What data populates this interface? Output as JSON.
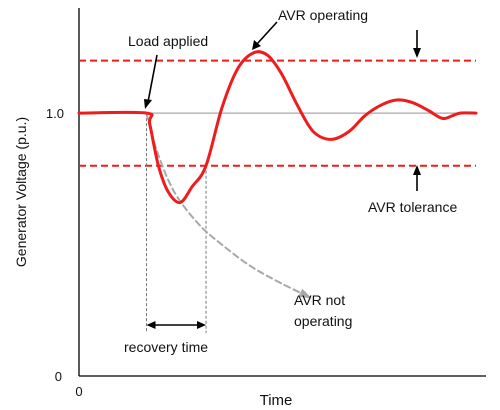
{
  "chart_data": {
    "type": "line",
    "xlabel": "Time",
    "ylabel": "Generator Voltage (p.u.)",
    "x_tick_labels": [
      {
        "x": 0,
        "label": "0"
      }
    ],
    "y_tick_labels": [
      {
        "y": 0,
        "label": "0"
      },
      {
        "y": 1.0,
        "label": "1.0"
      }
    ],
    "xlim": [
      0,
      10
    ],
    "ylim": [
      0,
      1.4
    ],
    "grid": false,
    "nominal_voltage": 1.0,
    "tolerance_band": {
      "upper": 1.2,
      "lower": 0.8
    },
    "series": [
      {
        "key": "avr_operating",
        "color": "#ee1c1c",
        "style": "solid",
        "points": [
          [
            0,
            1.0
          ],
          [
            1.7,
            1.0
          ],
          [
            1.78,
            0.96
          ],
          [
            2.0,
            0.8
          ],
          [
            2.25,
            0.7
          ],
          [
            2.55,
            0.66
          ],
          [
            2.85,
            0.72
          ],
          [
            3.2,
            0.8
          ],
          [
            3.6,
            1.02
          ],
          [
            4.0,
            1.17
          ],
          [
            4.4,
            1.23
          ],
          [
            4.75,
            1.22
          ],
          [
            5.1,
            1.15
          ],
          [
            5.5,
            1.03
          ],
          [
            5.9,
            0.93
          ],
          [
            6.35,
            0.9
          ],
          [
            6.8,
            0.93
          ],
          [
            7.2,
            0.99
          ],
          [
            7.6,
            1.03
          ],
          [
            8.0,
            1.05
          ],
          [
            8.4,
            1.04
          ],
          [
            8.8,
            1.01
          ],
          [
            9.15,
            0.98
          ],
          [
            9.4,
            0.99
          ],
          [
            9.6,
            1.0
          ],
          [
            10.0,
            1.0
          ]
        ]
      },
      {
        "key": "avr_not_operating",
        "color": "#a8a8a8",
        "style": "dashed",
        "points": [
          [
            1.7,
            1.0
          ],
          [
            1.78,
            0.95
          ],
          [
            2.0,
            0.84
          ],
          [
            2.4,
            0.7
          ],
          [
            3.0,
            0.58
          ],
          [
            3.6,
            0.5
          ],
          [
            4.3,
            0.42
          ],
          [
            5.0,
            0.36
          ],
          [
            5.8,
            0.3
          ]
        ]
      }
    ],
    "annotations": [
      {
        "text": "Load applied"
      },
      {
        "text": "AVR operating"
      },
      {
        "text": "AVR tolerance"
      },
      {
        "lines": [
          "AVR not",
          "operating"
        ]
      },
      {
        "text": "recovery time",
        "span": [
          1.7,
          3.2
        ]
      }
    ]
  }
}
